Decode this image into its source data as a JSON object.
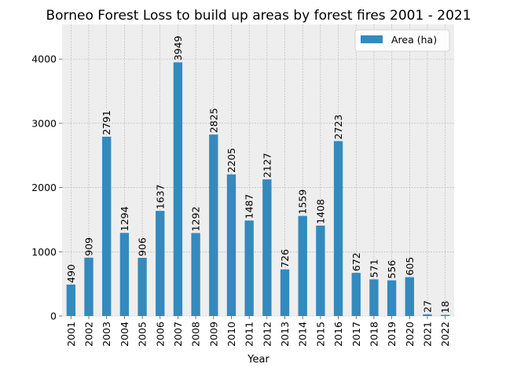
{
  "chart_data": {
    "type": "bar",
    "title": "Borneo Forest Loss to build up areas by forest fires 2001 - 2021",
    "xlabel": "Year",
    "ylabel": "",
    "categories": [
      "2001",
      "2002",
      "2003",
      "2004",
      "2005",
      "2006",
      "2007",
      "2008",
      "2009",
      "2010",
      "2011",
      "2012",
      "2013",
      "2014",
      "2015",
      "2016",
      "2017",
      "2018",
      "2019",
      "2020",
      "2021",
      "2022"
    ],
    "series": [
      {
        "name": "Area (ha)",
        "values": [
          490,
          909,
          2791,
          1294,
          906,
          1637,
          3949,
          1292,
          2825,
          2205,
          1487,
          2127,
          726,
          1559,
          1408,
          2723,
          672,
          571,
          556,
          605,
          27,
          18
        ]
      }
    ],
    "ylim": [
      0,
      4540
    ],
    "yticks": [
      0,
      1000,
      2000,
      3000,
      4000
    ],
    "grid": true,
    "legend_position": "top-right",
    "data_labels": true,
    "colors": {
      "bar": "#348ABD",
      "plot_background": "#EEEEEE",
      "grid": "#B2B2B2",
      "axis": "#BCBCBC"
    }
  }
}
